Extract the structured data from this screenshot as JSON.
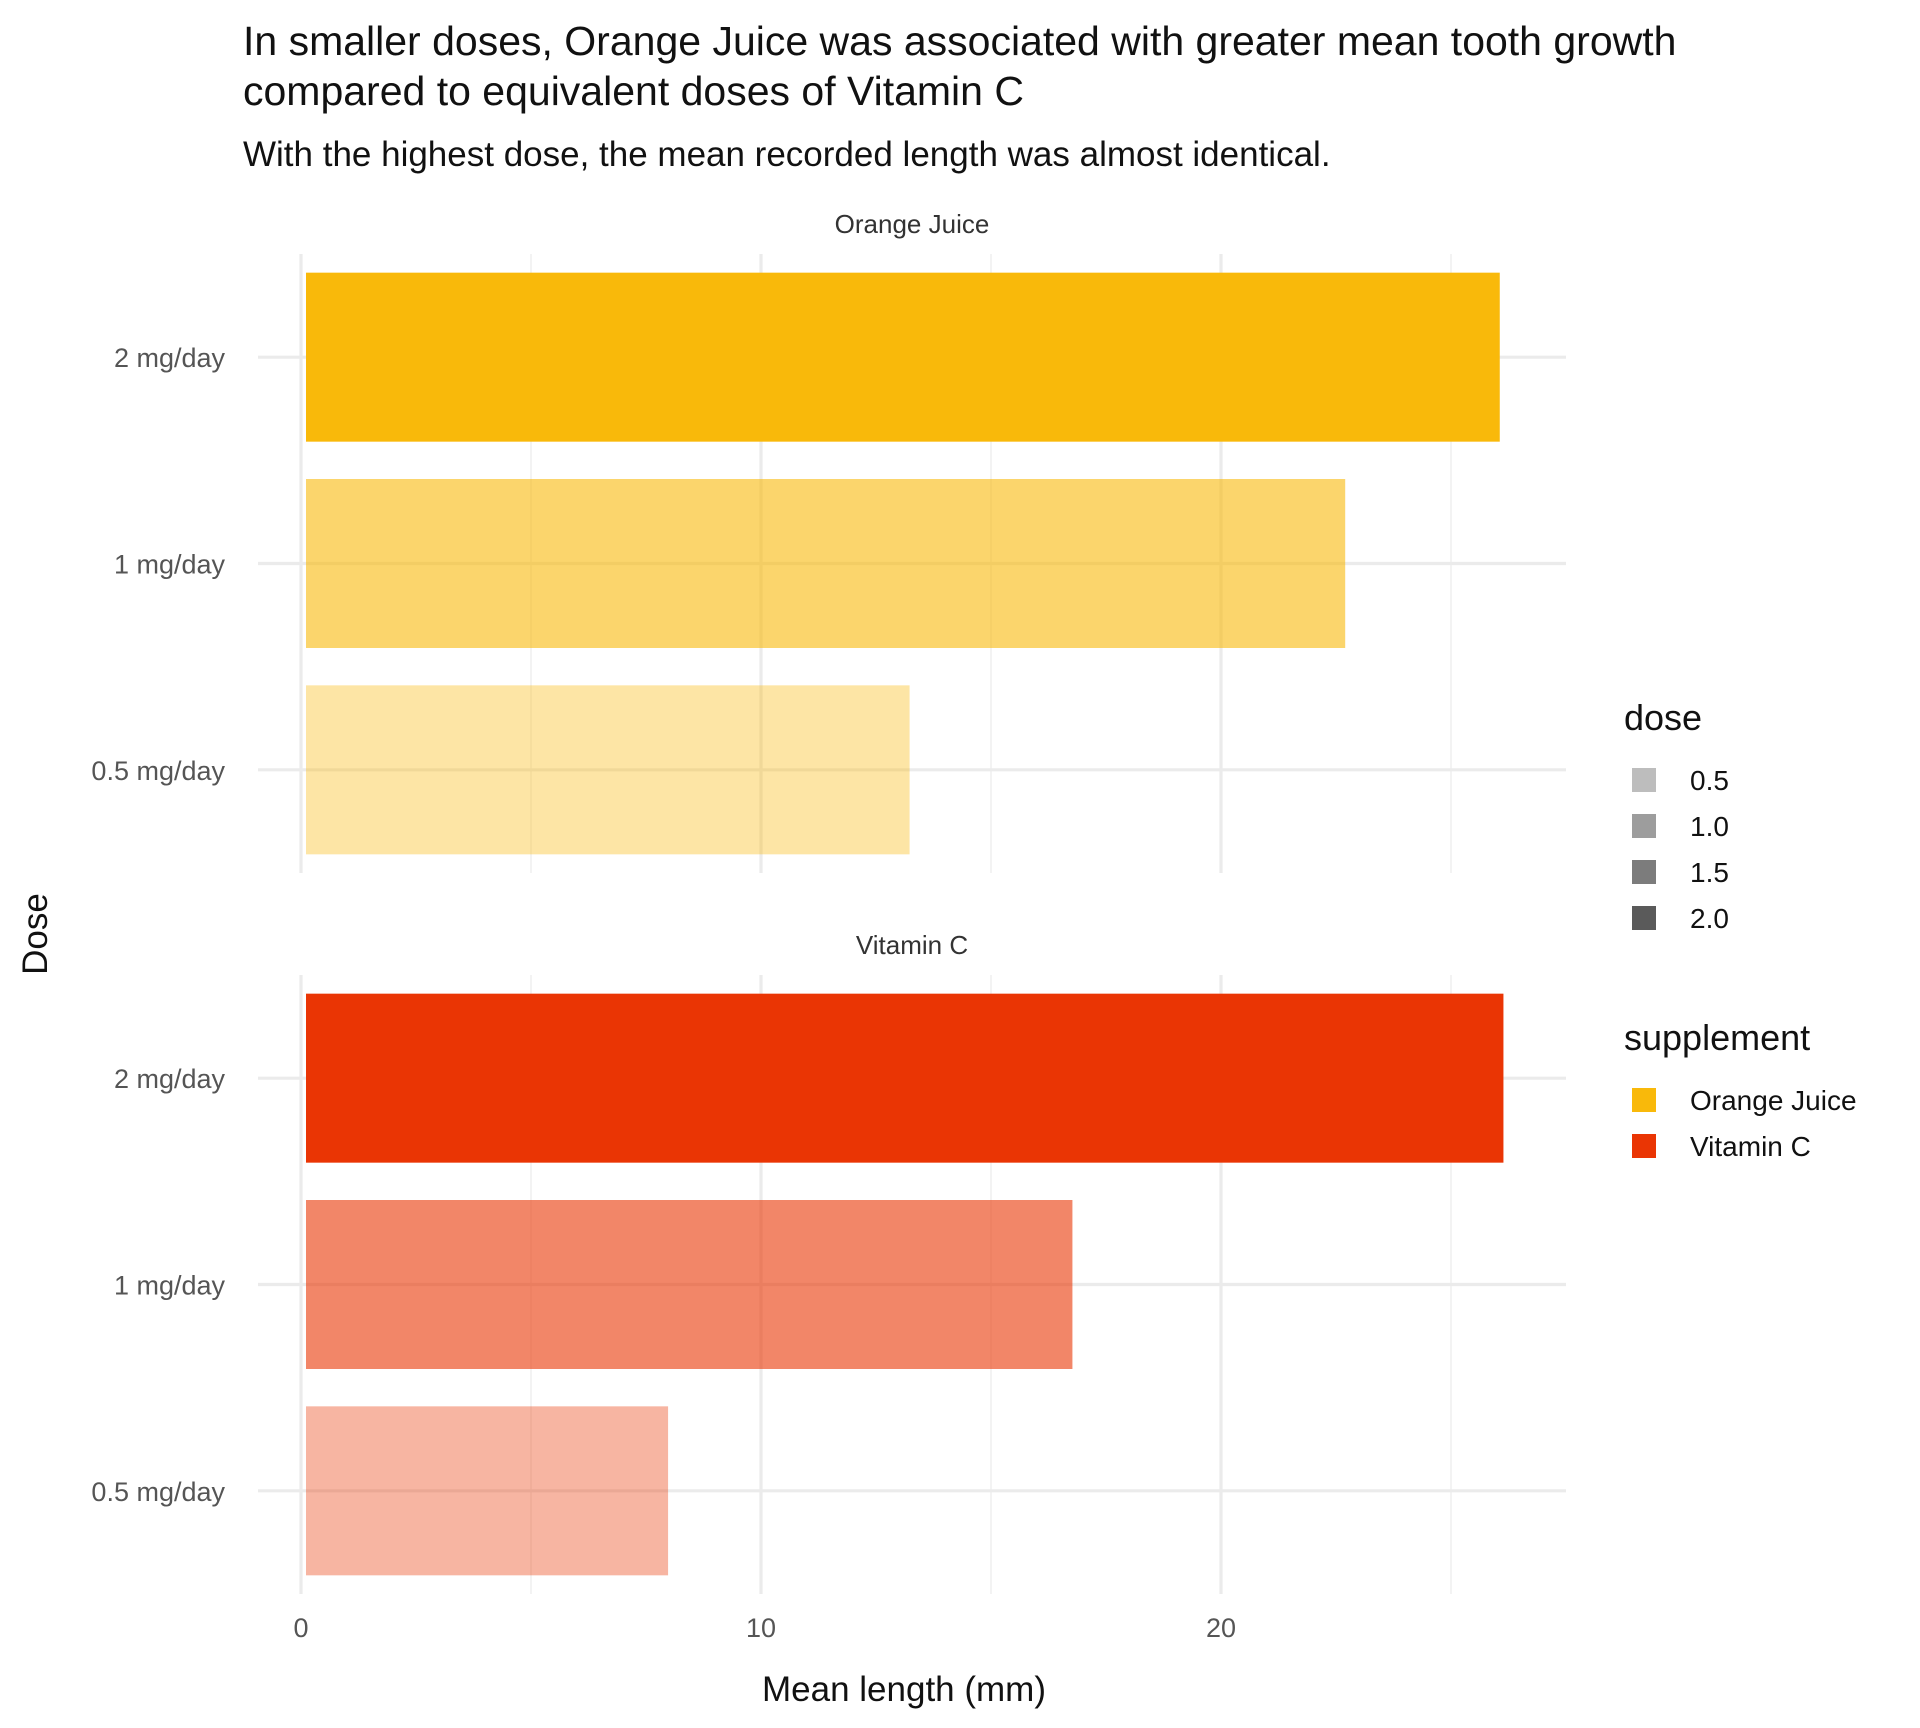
{
  "chart_data": {
    "type": "bar",
    "orientation": "horizontal",
    "title_lines": [
      "In smaller doses, Orange Juice was associated with greater mean tooth growth",
      "compared to equivalent doses of Vitamin C"
    ],
    "subtitle": "With the highest dose, the mean recorded length was almost identical.",
    "xlabel": "Mean length (mm)",
    "ylabel": "Dose",
    "xlim": [
      0,
      27.4
    ],
    "x_ticks": [
      0,
      10,
      20
    ],
    "grid": true,
    "categories": [
      "2 mg/day",
      "1 mg/day",
      "0.5 mg/day"
    ],
    "facets": [
      {
        "name": "Orange Juice",
        "color": "#F9B90A",
        "bars": [
          {
            "category": "2 mg/day",
            "dose": 2.0,
            "value": 26.06
          },
          {
            "category": "1 mg/day",
            "dose": 1.0,
            "value": 22.7
          },
          {
            "category": "0.5 mg/day",
            "dose": 0.5,
            "value": 13.23
          }
        ]
      },
      {
        "name": "Vitamin C",
        "color": "#EA3504",
        "bars": [
          {
            "category": "2 mg/day",
            "dose": 2.0,
            "value": 26.14
          },
          {
            "category": "1 mg/day",
            "dose": 1.0,
            "value": 16.77
          },
          {
            "category": "0.5 mg/day",
            "dose": 0.5,
            "value": 7.98
          }
        ]
      }
    ],
    "legend_position": "right",
    "legends": [
      {
        "title": "dose",
        "entries": [
          {
            "label": "0.5",
            "color": "#bdbdbd"
          },
          {
            "label": "1.0",
            "color": "#9d9d9d"
          },
          {
            "label": "1.5",
            "color": "#7c7c7c"
          },
          {
            "label": "2.0",
            "color": "#5a5a5a"
          }
        ]
      },
      {
        "title": "supplement",
        "entries": [
          {
            "label": "Orange Juice",
            "color": "#F9B90A"
          },
          {
            "label": "Vitamin C",
            "color": "#EA3504"
          }
        ]
      }
    ]
  }
}
